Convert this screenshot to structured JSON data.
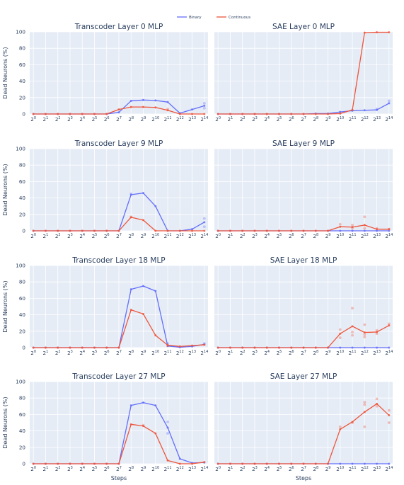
{
  "legend": [
    {
      "name": "Binary",
      "color": "#636efa"
    },
    {
      "name": "Continuous",
      "color": "#ef553b"
    }
  ],
  "xlabel": "Steps",
  "ylabel": "Dead Neurons (%)",
  "chart_data": [
    {
      "type": "line",
      "title": "Transcoder Layer 0 MLP",
      "ylim": [
        0,
        100
      ],
      "x": [
        0,
        1,
        2,
        3,
        4,
        5,
        6,
        7,
        8,
        9,
        10,
        11,
        12,
        13,
        14
      ],
      "series": [
        {
          "name": "Binary",
          "values": [
            0,
            0,
            0,
            0,
            0,
            0,
            0,
            2,
            16,
            17,
            16.5,
            14.5,
            1,
            5.5,
            10
          ],
          "scatter": [
            [
              14,
              13
            ],
            [
              14,
              7
            ]
          ]
        },
        {
          "name": "Continuous",
          "values": [
            0,
            0,
            0,
            0,
            0,
            0,
            0,
            5.5,
            8.5,
            8.5,
            8,
            4.5,
            0,
            0,
            0
          ],
          "scatter": [
            [
              11,
              6
            ]
          ]
        }
      ]
    },
    {
      "type": "line",
      "title": "SAE Layer 0 MLP",
      "ylim": [
        0,
        100
      ],
      "x": [
        0,
        1,
        2,
        3,
        4,
        5,
        6,
        7,
        8,
        9,
        10,
        11,
        12,
        13,
        14
      ],
      "series": [
        {
          "name": "Binary",
          "values": [
            0,
            0,
            0,
            0,
            0,
            0,
            0,
            0,
            0.5,
            0.5,
            2.5,
            4,
            4.5,
            5,
            13
          ],
          "scatter": [
            [
              14,
              16
            ],
            [
              13,
              6
            ]
          ]
        },
        {
          "name": "Continuous",
          "values": [
            0,
            0,
            0,
            0,
            0,
            0,
            0,
            0,
            0,
            0,
            0.5,
            5,
            99,
            99.5,
            99.5
          ],
          "scatter": []
        }
      ]
    },
    {
      "type": "line",
      "title": "Transcoder Layer 9 MLP",
      "ylim": [
        0,
        100
      ],
      "x": [
        0,
        1,
        2,
        3,
        4,
        5,
        6,
        7,
        8,
        9,
        10,
        11,
        12,
        13,
        14
      ],
      "series": [
        {
          "name": "Binary",
          "values": [
            0,
            0,
            0,
            0,
            0,
            0,
            0,
            0,
            44,
            46,
            30,
            0,
            0,
            2,
            10.5
          ],
          "scatter": [
            [
              14,
              15
            ],
            [
              14,
              5
            ],
            [
              8,
              45
            ]
          ]
        },
        {
          "name": "Continuous",
          "values": [
            0,
            0,
            0,
            0,
            0,
            0,
            0,
            0,
            16.5,
            13,
            0,
            0,
            0,
            0,
            0
          ],
          "scatter": [
            [
              8,
              17
            ]
          ]
        }
      ]
    },
    {
      "type": "line",
      "title": "SAE Layer 9 MLP",
      "ylim": [
        0,
        100
      ],
      "x": [
        0,
        1,
        2,
        3,
        4,
        5,
        6,
        7,
        8,
        9,
        10,
        11,
        12,
        13,
        14
      ],
      "series": [
        {
          "name": "Binary",
          "values": [
            0,
            0,
            0,
            0,
            0,
            0,
            0,
            0,
            0,
            0,
            0,
            0,
            0,
            0,
            0
          ],
          "scatter": []
        },
        {
          "name": "Continuous",
          "values": [
            0,
            0,
            0,
            0,
            0,
            0,
            0,
            0,
            0,
            0,
            5,
            4.5,
            7,
            2,
            2
          ],
          "scatter": [
            [
              10,
              8
            ],
            [
              11,
              7
            ],
            [
              11,
              3
            ],
            [
              12,
              17
            ],
            [
              12,
              3
            ],
            [
              13,
              3
            ],
            [
              14,
              2
            ]
          ]
        }
      ]
    },
    {
      "type": "line",
      "title": "Transcoder Layer 18 MLP",
      "ylim": [
        0,
        100
      ],
      "x": [
        0,
        1,
        2,
        3,
        4,
        5,
        6,
        7,
        8,
        9,
        10,
        11,
        12,
        13,
        14
      ],
      "series": [
        {
          "name": "Binary",
          "values": [
            0,
            0,
            0,
            0,
            0,
            0,
            0,
            0,
            71,
            75,
            69,
            2,
            0.5,
            1.5,
            4
          ],
          "scatter": [
            [
              11,
              5
            ],
            [
              14,
              5
            ]
          ]
        },
        {
          "name": "Continuous",
          "values": [
            0,
            0,
            0,
            0,
            0,
            0,
            0,
            0,
            46,
            41,
            15,
            3,
            1.5,
            2.5,
            3.5
          ],
          "scatter": [
            [
              11,
              2
            ]
          ]
        }
      ]
    },
    {
      "type": "line",
      "title": "SAE Layer 18 MLP",
      "ylim": [
        0,
        100
      ],
      "x": [
        0,
        1,
        2,
        3,
        4,
        5,
        6,
        7,
        8,
        9,
        10,
        11,
        12,
        13,
        14
      ],
      "series": [
        {
          "name": "Binary",
          "values": [
            0,
            0,
            0,
            0,
            0,
            0,
            0,
            0,
            0,
            0,
            0,
            0,
            0,
            0,
            0
          ],
          "scatter": []
        },
        {
          "name": "Continuous",
          "values": [
            0,
            0,
            0,
            0,
            0,
            0,
            0,
            0,
            0,
            0,
            17,
            26,
            18.5,
            19,
            27
          ],
          "scatter": [
            [
              10,
              22
            ],
            [
              10,
              12
            ],
            [
              11,
              48
            ],
            [
              11,
              19
            ],
            [
              11,
              15
            ],
            [
              12,
              28
            ],
            [
              12,
              16
            ],
            [
              12,
              13
            ],
            [
              13,
              17
            ],
            [
              13,
              21
            ],
            [
              14,
              29
            ]
          ]
        }
      ]
    },
    {
      "type": "line",
      "title": "Transcoder Layer 27 MLP",
      "ylim": [
        0,
        100
      ],
      "x": [
        0,
        1,
        2,
        3,
        4,
        5,
        6,
        7,
        8,
        9,
        10,
        11,
        12,
        13,
        14
      ],
      "series": [
        {
          "name": "Binary",
          "values": [
            0,
            0,
            0,
            0,
            0,
            0,
            0,
            0,
            71,
            74.5,
            71,
            44,
            6,
            1,
            1.5
          ],
          "scatter": [
            [
              11,
              51
            ],
            [
              11,
              37
            ]
          ]
        },
        {
          "name": "Continuous",
          "values": [
            0,
            0,
            0,
            0,
            0,
            0,
            0,
            0,
            48,
            46,
            37,
            4,
            0,
            0,
            2
          ],
          "scatter": [
            [
              9,
              47
            ]
          ]
        }
      ]
    },
    {
      "type": "line",
      "title": "SAE Layer 27 MLP",
      "ylim": [
        0,
        100
      ],
      "x": [
        0,
        1,
        2,
        3,
        4,
        5,
        6,
        7,
        8,
        9,
        10,
        11,
        12,
        13,
        14
      ],
      "series": [
        {
          "name": "Binary",
          "values": [
            0,
            0,
            0,
            0,
            0,
            0,
            0,
            0,
            0,
            0,
            0,
            0,
            0,
            0,
            0
          ],
          "scatter": []
        },
        {
          "name": "Continuous",
          "values": [
            0,
            0,
            0,
            0,
            0,
            0,
            0,
            0,
            0,
            0,
            42,
            51,
            63,
            73,
            59
          ],
          "scatter": [
            [
              10,
              45
            ],
            [
              11,
              50
            ],
            [
              12,
              45
            ],
            [
              12,
              72
            ],
            [
              12,
              75
            ],
            [
              13,
              79
            ],
            [
              13,
              70
            ],
            [
              14,
              50
            ],
            [
              14,
              65
            ]
          ]
        }
      ]
    }
  ],
  "yticks": [
    0,
    20,
    40,
    60,
    80,
    100
  ],
  "xticks": [
    {
      "base": "2",
      "exp": "0"
    },
    {
      "base": "2",
      "exp": "1"
    },
    {
      "base": "2",
      "exp": "2"
    },
    {
      "base": "2",
      "exp": "3"
    },
    {
      "base": "2",
      "exp": "4"
    },
    {
      "base": "2",
      "exp": "5"
    },
    {
      "base": "2",
      "exp": "6"
    },
    {
      "base": "2",
      "exp": "7"
    },
    {
      "base": "2",
      "exp": "8"
    },
    {
      "base": "2",
      "exp": "9"
    },
    {
      "base": "2",
      "exp": "10"
    },
    {
      "base": "2",
      "exp": "11"
    },
    {
      "base": "2",
      "exp": "12"
    },
    {
      "base": "2",
      "exp": "13"
    },
    {
      "base": "2",
      "exp": "14"
    }
  ]
}
